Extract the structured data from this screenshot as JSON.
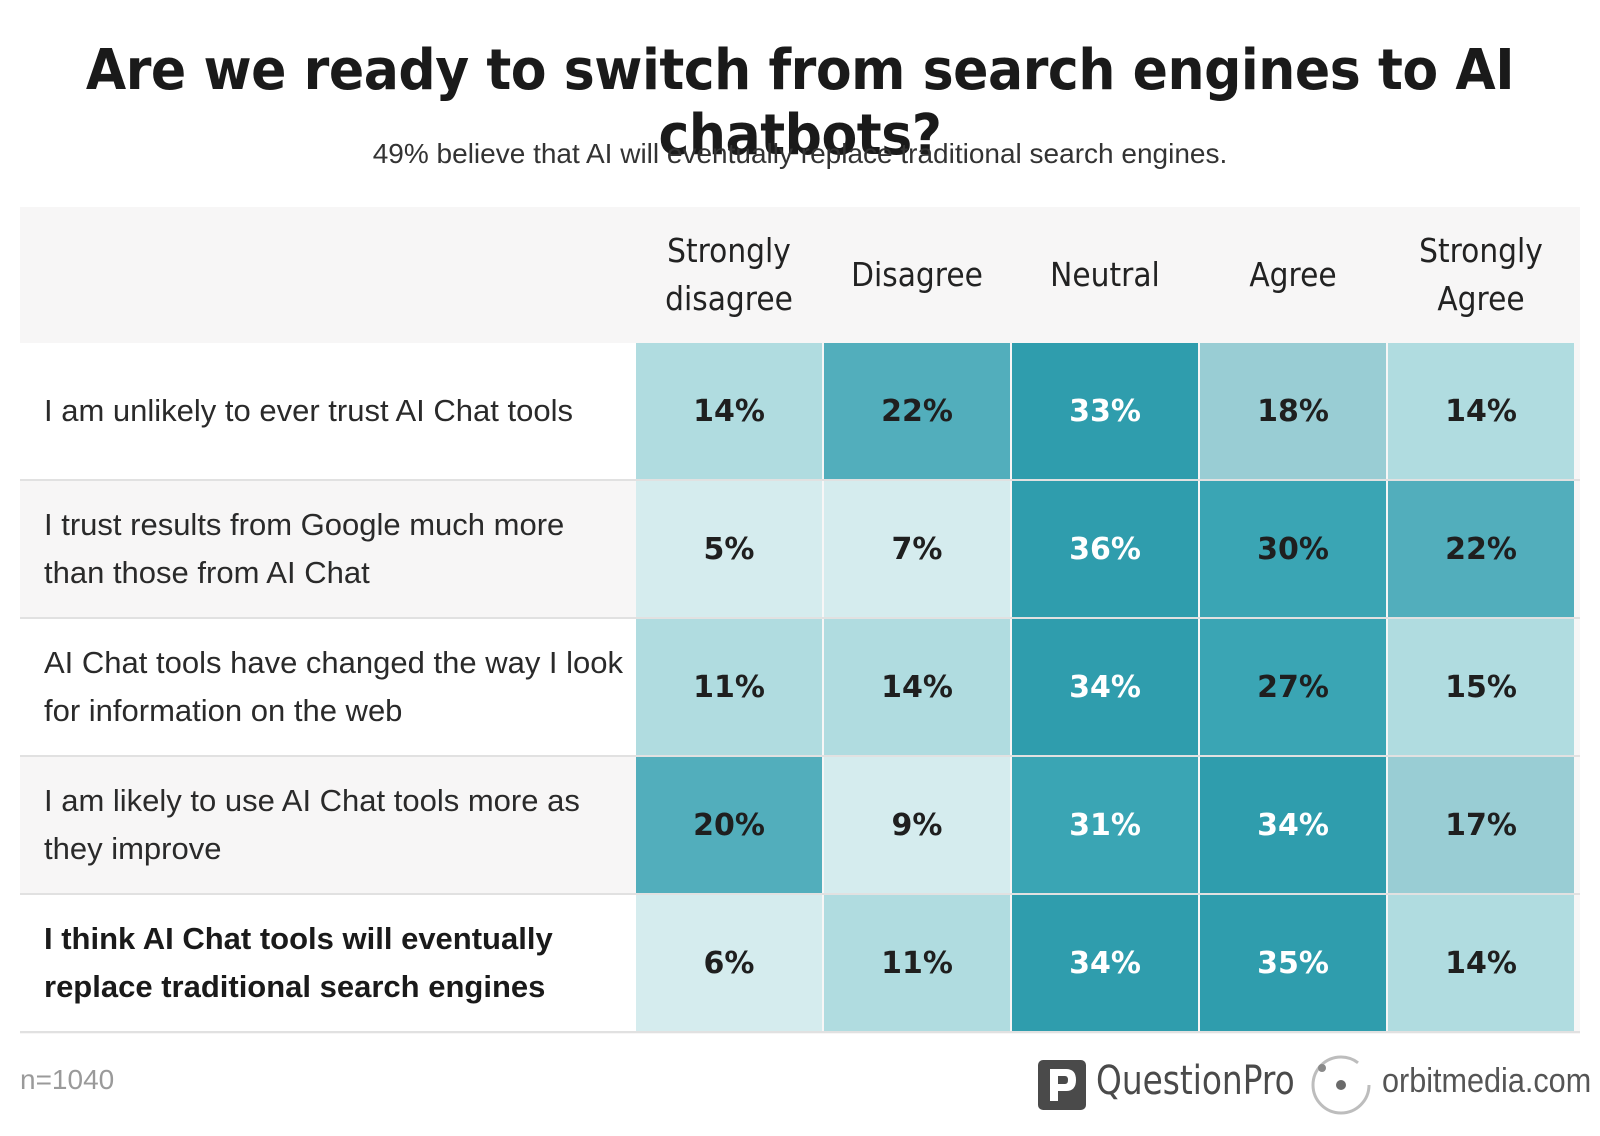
{
  "chart_data": {
    "type": "heatmap",
    "title": "Are we ready to switch from search engines to AI chatbots?",
    "subtitle": "49% believe that AI will eventually replace traditional search engines.",
    "columns": [
      "Strongly disagree",
      "Disagree",
      "Neutral",
      "Agree",
      "Strongly Agree"
    ],
    "rows": [
      {
        "label": "I am unlikely to ever trust AI Chat tools",
        "values": [
          "14%",
          "22%",
          "33%",
          "18%",
          "14%"
        ]
      },
      {
        "label": "I trust results from Google much more than those from AI Chat",
        "values": [
          "5%",
          "7%",
          "36%",
          "30%",
          "22%"
        ]
      },
      {
        "label": "AI Chat tools have changed the way I look for information on the web",
        "values": [
          "11%",
          "14%",
          "34%",
          "27%",
          "15%"
        ]
      },
      {
        "label": "I am likely to use AI Chat tools more as they improve",
        "values": [
          "20%",
          "9%",
          "31%",
          "34%",
          "17%"
        ]
      },
      {
        "label": "I think AI Chat tools will eventually replace traditional search engines",
        "values": [
          "6%",
          "11%",
          "34%",
          "35%",
          "14%"
        ]
      }
    ],
    "colors": {
      "lightest": "#d5ecee",
      "light": "#b0dce0",
      "mid_light": "#99cdd4",
      "mid": "#52aebc",
      "dark": "#3aa5b4",
      "darkest": "#2f9dad"
    }
  },
  "footer": {
    "sample": "n=1040",
    "brand1": "QuestionPro",
    "brand2": "orbitmedia.com"
  },
  "icons": [
    "questionpro-logo-icon",
    "orbitmedia-logo-icon"
  ]
}
